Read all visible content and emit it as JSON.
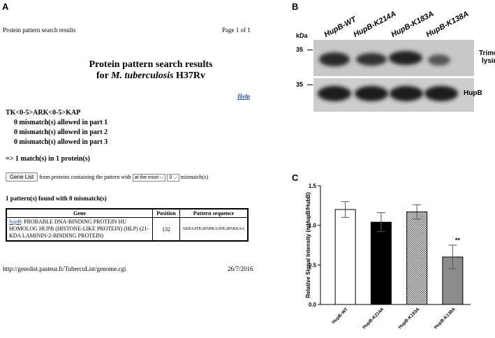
{
  "panels": {
    "a": "A",
    "b": "B",
    "c": "C"
  },
  "panelA": {
    "header_left": "Protein pattern search results",
    "header_right": "Page 1 of 1",
    "title_line1": "Protein pattern search results",
    "title_line2_prefix": "for ",
    "title_line2_species": "M. tuberculosis",
    "title_line2_suffix": " H37Rv",
    "help": "Help",
    "pattern": "TK<0-5>ARK<0-5>KAP",
    "mismatch_lines": [
      "0 mismatch(s) allowed in part 1",
      "0 mismatch(s) allowed in part 2",
      "0 mismatch(s) allowed in part 3"
    ],
    "match_summary": "=> 1 match(s) in 1 protein(s)",
    "gene_list_button": "Gene List",
    "from_text": "from proteins containing the pattern with",
    "select_mode": "at the most",
    "select_count": "0",
    "mismatch_suffix": "mismatch(s)",
    "found_text": "1 pattern(s) found with 0 mismatch(s)",
    "table": {
      "headers": [
        "Gene",
        "Position",
        "Pattern sequence"
      ],
      "row": {
        "gene_link": "hupB",
        "gene_desc": ": PROBABLE DNA-BINDING PROTEIN HU HOMOLOG HUPB (HISTONE-LIKE PROTEIN) (HLP) (21-KDA LAMININ-2-BINDING PROTEIN)",
        "position": "132",
        "sequence": "AKKAATKAPARKAATKAPAKKAA"
      }
    },
    "footer_url": "http://genolist.pasteur.fr/TubercuList/genome.cgi",
    "footer_date": "26/7/2016"
  },
  "panelB": {
    "kda_label": "kDa",
    "marker_top": "35",
    "marker_bottom": "35",
    "lanes": [
      "HupB-WT",
      "HupB-K214A",
      "HupB-K183A",
      "HupB-K138A"
    ],
    "blot_top_label_line1": "Trimethyl",
    "blot_top_label_line2": "lysine",
    "blot_bottom_label": "HupB"
  },
  "chart_data": {
    "type": "bar",
    "categories": [
      "HupB-WT",
      "HupB-K214A",
      "HupB-K183A",
      "HupB-K138A"
    ],
    "values": [
      1.2,
      1.04,
      1.17,
      0.6
    ],
    "errors": [
      0.1,
      0.12,
      0.09,
      0.15
    ],
    "significance": [
      "",
      "",
      "",
      "**"
    ],
    "ylabel": "Relative Signal Intensity (mHupB/HubB)",
    "ylim": [
      0.0,
      1.5
    ],
    "yticks": [
      "0.0",
      "0.5",
      "1.0",
      "1.5"
    ],
    "bar_styles": [
      "white",
      "black",
      "checker",
      "gray"
    ],
    "colors": {
      "black": "#000000",
      "gray": "#8c8c8c",
      "white": "#ffffff"
    }
  }
}
